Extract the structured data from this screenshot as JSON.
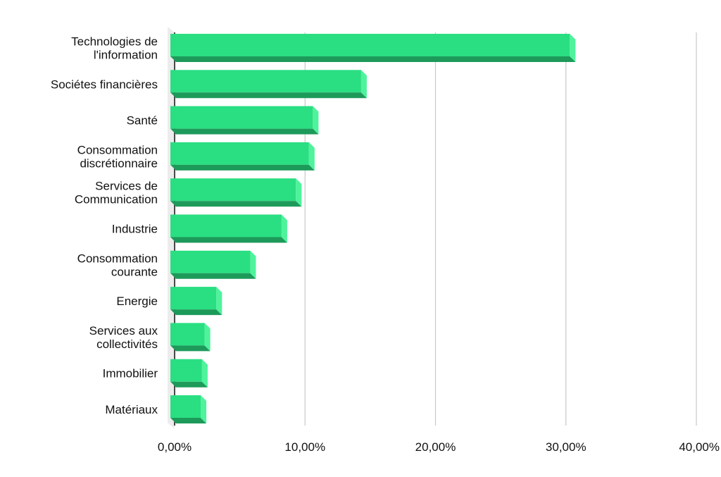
{
  "chart_data": {
    "type": "bar",
    "orientation": "horizontal",
    "categories": [
      [
        "Technologies de",
        "l'information"
      ],
      [
        "Sociétes financières"
      ],
      [
        "Santé"
      ],
      [
        "Consommation",
        "discrétionnaire"
      ],
      [
        "Services de",
        "Communication"
      ],
      [
        "Industrie"
      ],
      [
        "Consommation",
        "courante"
      ],
      [
        "Energie"
      ],
      [
        "Services aux",
        "collectivités"
      ],
      [
        "Immobilier"
      ],
      [
        "Matériaux"
      ]
    ],
    "values": [
      30.3,
      14.3,
      10.6,
      10.3,
      9.3,
      8.2,
      5.8,
      3.2,
      2.3,
      2.1,
      2.0
    ],
    "xlim": [
      0,
      40
    ],
    "xticks": [
      "0,00%",
      "10,00%",
      "20,00%",
      "30,00%",
      "40,00%"
    ],
    "grid": true,
    "colors": {
      "bar_front": "#2ade82",
      "bar_side": "#4ef39c",
      "bar_bottom": "#1d9a5a",
      "grid": "#c8c8c8",
      "axis": "#111111"
    }
  }
}
